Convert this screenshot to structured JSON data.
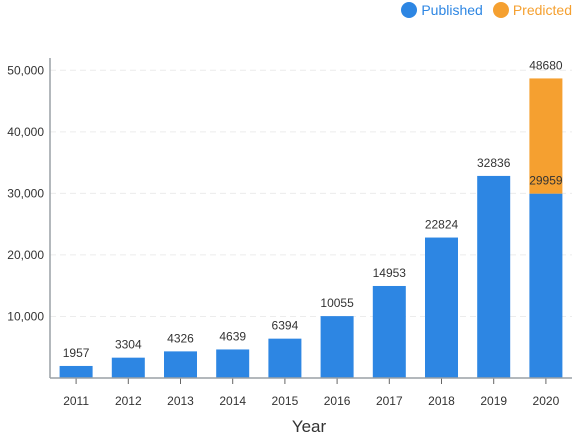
{
  "chart_data": {
    "type": "bar",
    "categories": [
      "2011",
      "2012",
      "2013",
      "2014",
      "2015",
      "2016",
      "2017",
      "2018",
      "2019",
      "2020"
    ],
    "series": [
      {
        "name": "Published",
        "values": [
          1957,
          3304,
          4326,
          4639,
          6394,
          10055,
          14953,
          22824,
          32836,
          29959
        ],
        "color": "#2d86e3"
      },
      {
        "name": "Predicted",
        "values": [
          0,
          0,
          0,
          0,
          0,
          0,
          0,
          0,
          0,
          18721
        ],
        "color": "#f5a030"
      }
    ],
    "data_labels": [
      "1957",
      "3304",
      "4326",
      "4639",
      "6394",
      "10055",
      "14953",
      "22824",
      "32836",
      "29959"
    ],
    "total_label_2020": "48680",
    "xlabel": "Year",
    "ylabel": "",
    "ylim": [
      0,
      52000
    ],
    "y_ticks": [
      10000,
      20000,
      30000,
      40000,
      50000
    ],
    "y_tick_labels": [
      "10,000",
      "20,000",
      "30,000",
      "40,000",
      "50,000"
    ],
    "grid": true,
    "legend_position": "top-right"
  }
}
